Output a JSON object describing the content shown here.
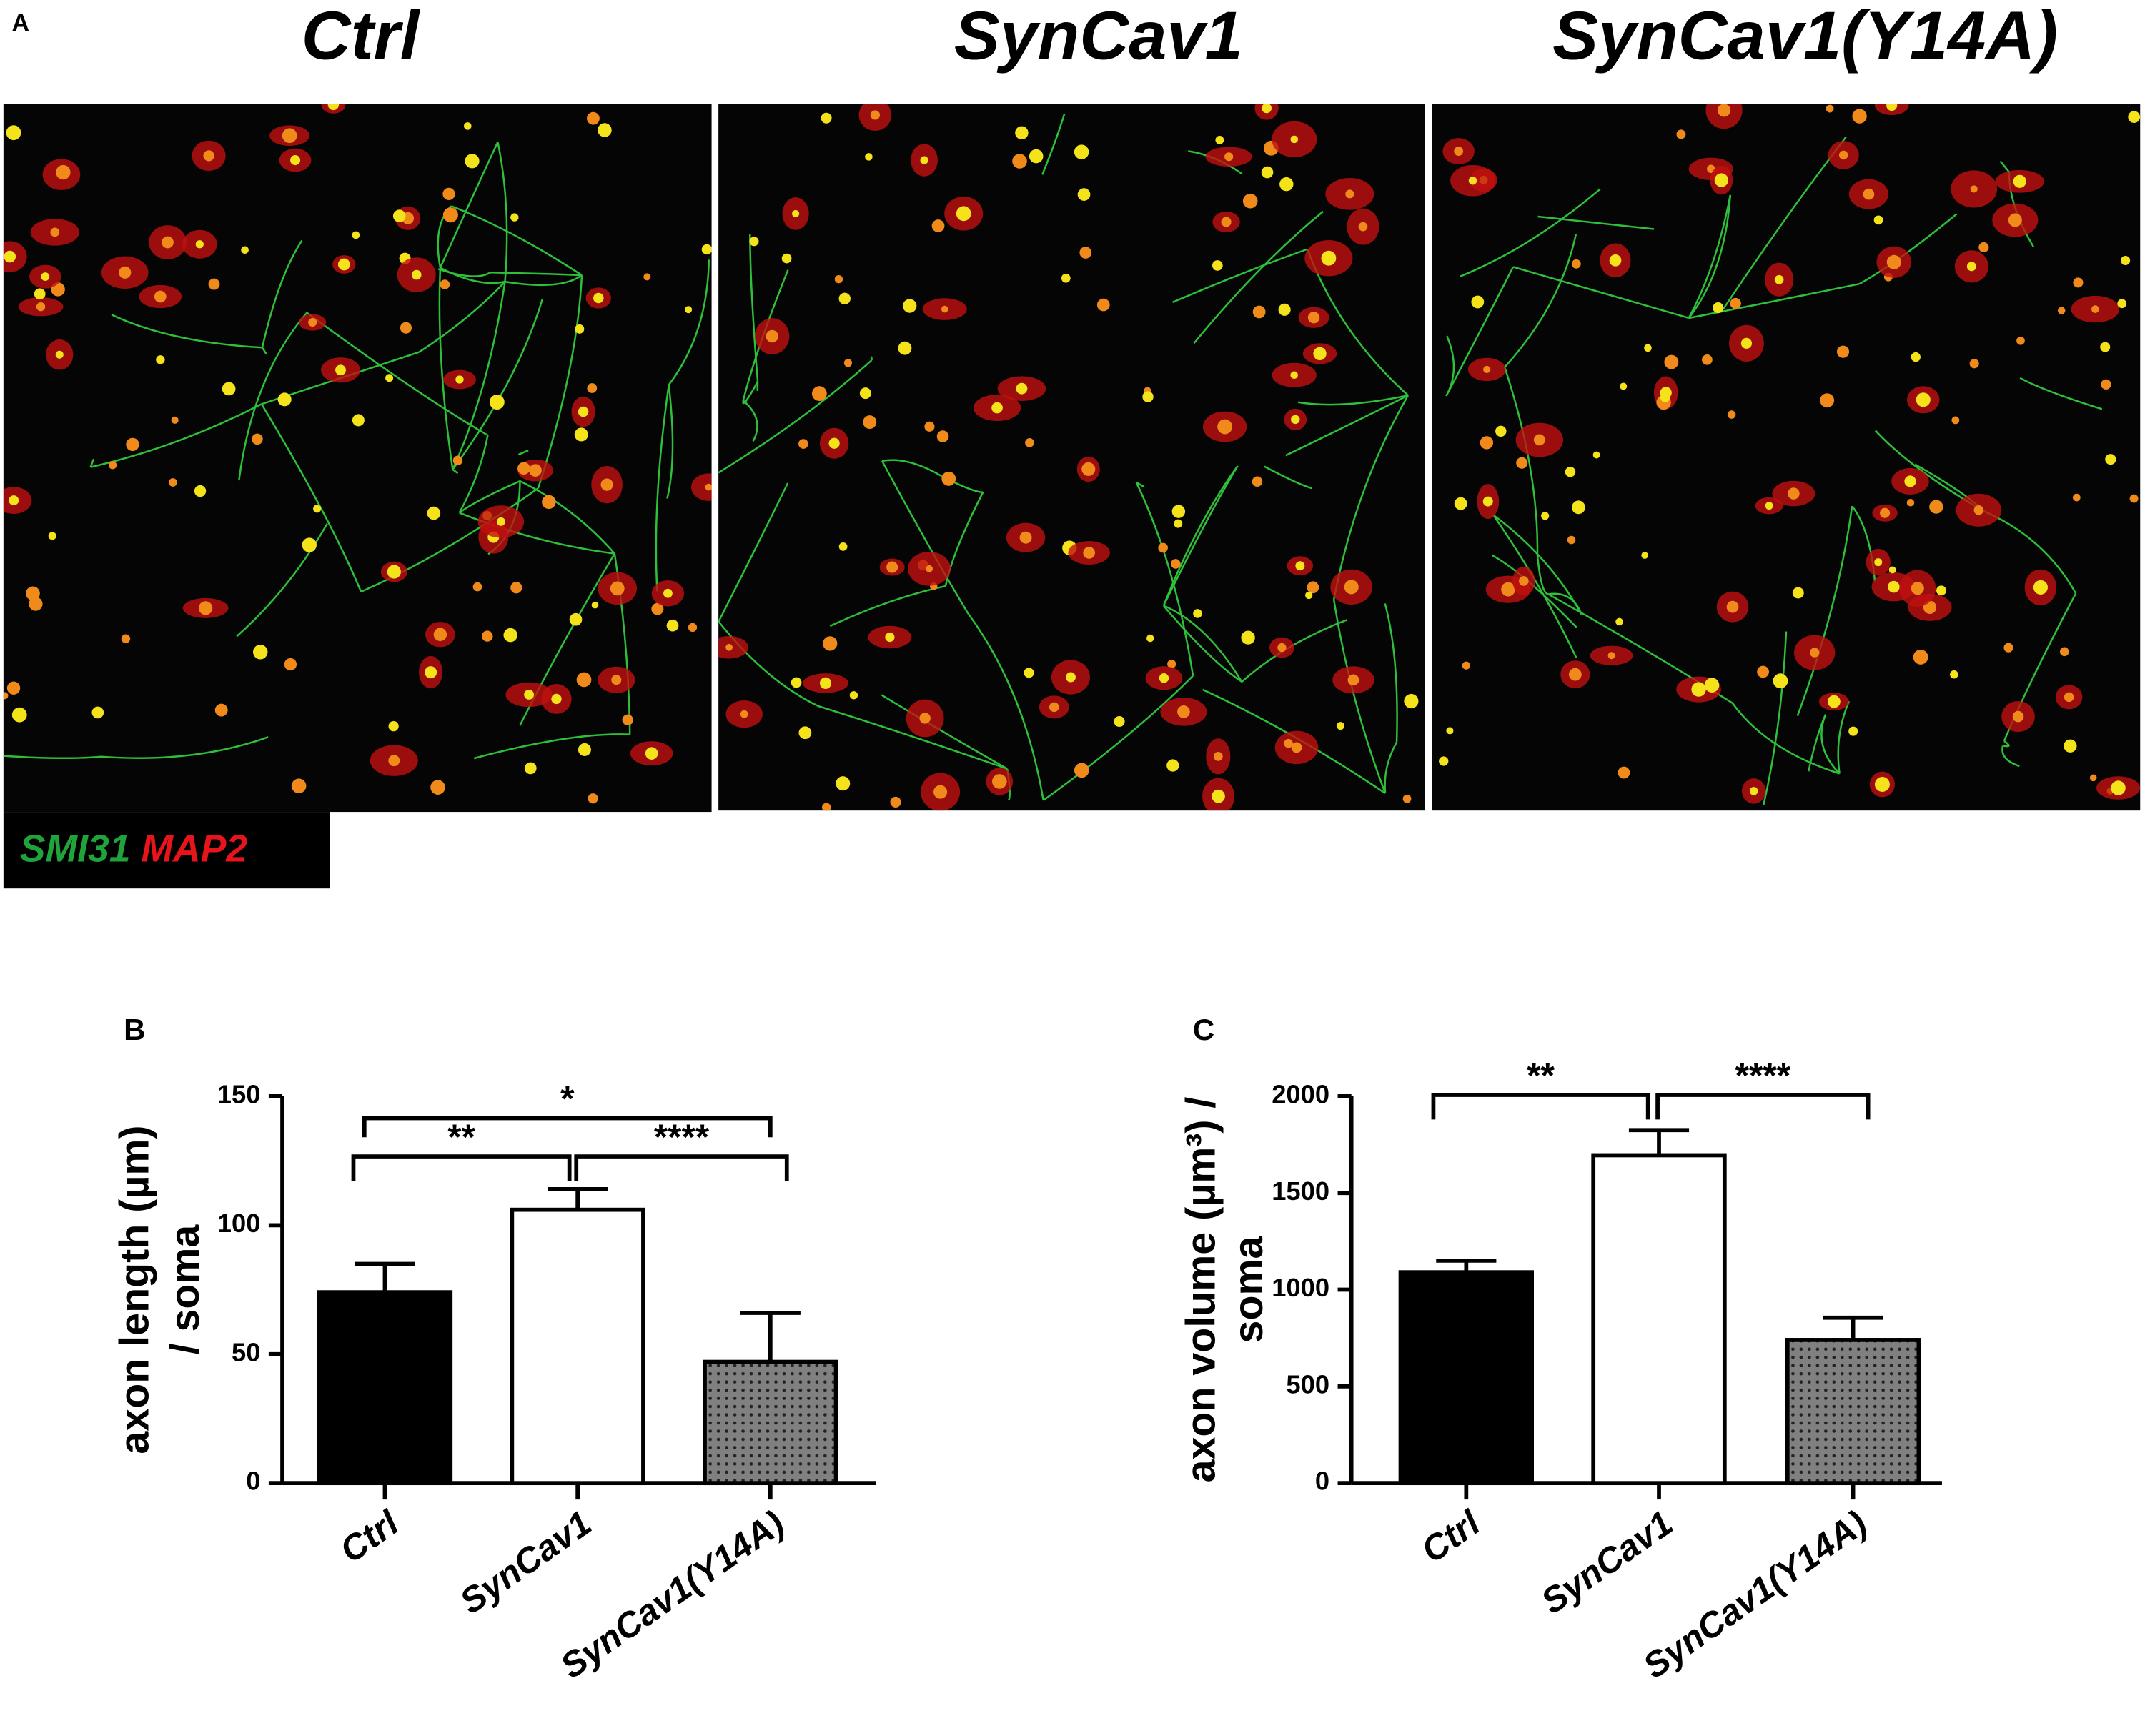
{
  "panel_a": {
    "label": "A",
    "titles": [
      "Ctrl",
      "SynCav1",
      "SynCav1(Y14A)"
    ],
    "stains": [
      {
        "name": "SMI31",
        "color": "#1fa33a"
      },
      {
        "name": "MAP2",
        "color": "#e8141b"
      }
    ]
  },
  "chart_data": [
    {
      "type": "bar",
      "panel_label": "B",
      "ylabel": [
        "axon length (µm)",
        "/ soma"
      ],
      "categories": [
        "Ctrl",
        "SynCav1",
        "SynCav1(Y14A)"
      ],
      "values": [
        74,
        106,
        47
      ],
      "errors": [
        11,
        8,
        19
      ],
      "colors": [
        "#000000",
        "#ffffff",
        "#808080"
      ],
      "dotted": [
        false,
        false,
        true
      ],
      "ylim": [
        0,
        150
      ],
      "yticks": [
        0,
        50,
        100,
        150
      ],
      "annotations": [
        "**",
        "****",
        "*"
      ]
    },
    {
      "type": "bar",
      "panel_label": "C",
      "ylabel": [
        "axon volume (µm³) /",
        "soma"
      ],
      "categories": [
        "Ctrl",
        "SynCav1",
        "SynCav1(Y14A)"
      ],
      "values": [
        1090,
        1695,
        740
      ],
      "errors": [
        60,
        130,
        115
      ],
      "colors": [
        "#000000",
        "#ffffff",
        "#808080"
      ],
      "dotted": [
        false,
        false,
        true
      ],
      "ylim": [
        0,
        2000
      ],
      "yticks": [
        0,
        500,
        1000,
        1500,
        2000
      ],
      "annotations": [
        "**",
        "****"
      ]
    }
  ]
}
